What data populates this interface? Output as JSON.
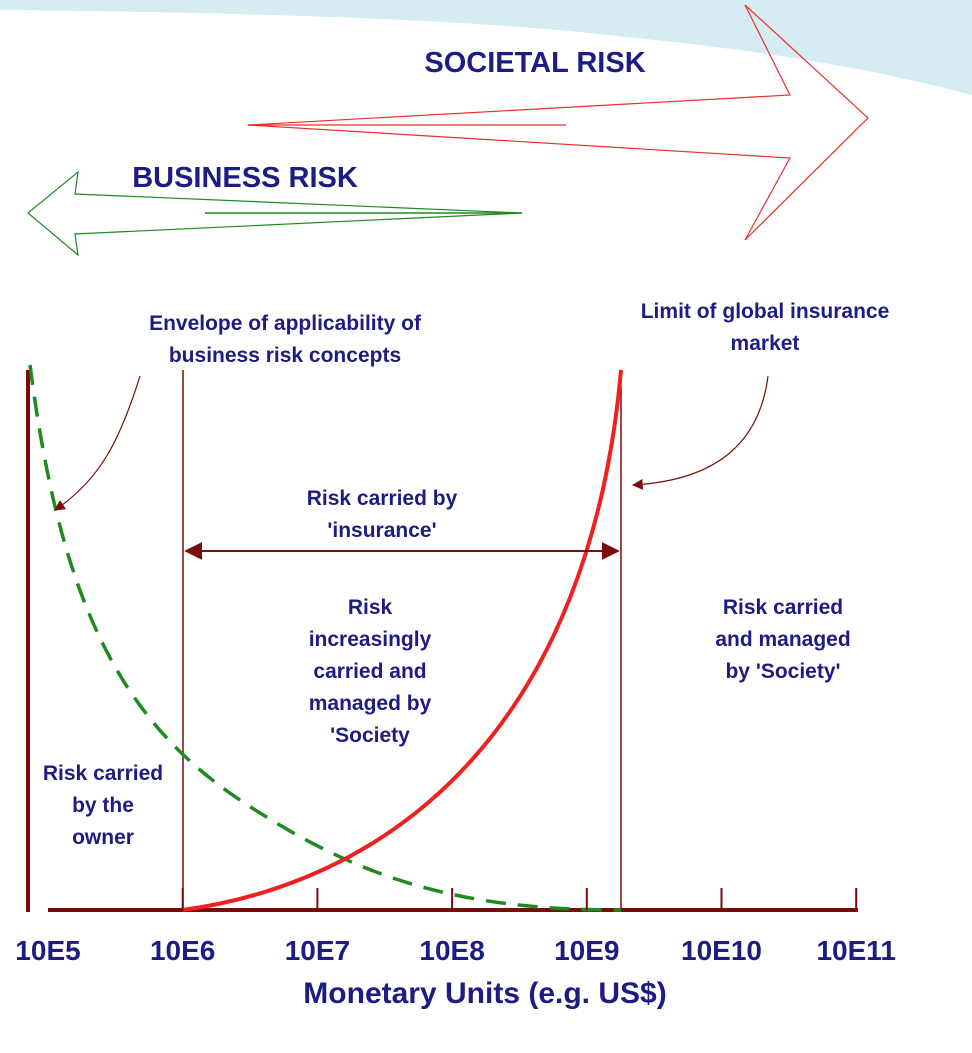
{
  "societal_arrow": {
    "label": "SOCIETAL RISK"
  },
  "business_arrow": {
    "label": "BUSINESS RISK"
  },
  "envelope_label": [
    "Envelope of applicability of",
    "business risk concepts"
  ],
  "limit_label": [
    "Limit of global insurance",
    "market"
  ],
  "insurance_label": [
    "Risk carried by",
    "'insurance'"
  ],
  "middle_label": [
    "Risk",
    "increasingly",
    "carried and",
    "managed by",
    "'Society"
  ],
  "society_label": [
    "Risk  carried",
    "and managed",
    "by 'Society'"
  ],
  "owner_label": [
    "Risk carried",
    "by the",
    "owner"
  ],
  "axis": {
    "ticks": [
      "10E5",
      "10E6",
      "10E7",
      "10E8",
      "10E9",
      "10E10",
      "10E11"
    ],
    "label": "Monetary Units (e.g. US$)"
  }
}
